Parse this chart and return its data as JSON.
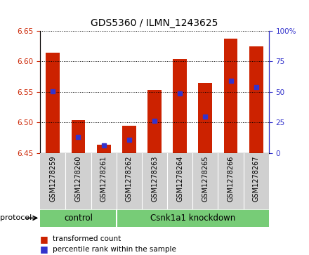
{
  "title": "GDS5360 / ILMN_1243625",
  "samples": [
    "GSM1278259",
    "GSM1278260",
    "GSM1278261",
    "GSM1278262",
    "GSM1278263",
    "GSM1278264",
    "GSM1278265",
    "GSM1278266",
    "GSM1278267"
  ],
  "bar_tops": [
    6.614,
    6.504,
    6.463,
    6.495,
    6.553,
    6.604,
    6.565,
    6.637,
    6.624
  ],
  "bar_bottom": 6.45,
  "blue_values": [
    6.551,
    6.476,
    6.462,
    6.472,
    6.503,
    6.547,
    6.51,
    6.568,
    6.558
  ],
  "ylim": [
    6.45,
    6.65
  ],
  "y_ticks": [
    6.45,
    6.5,
    6.55,
    6.6,
    6.65
  ],
  "y2_labels": [
    "0",
    "25",
    "50",
    "75",
    "100%"
  ],
  "y2_tick_positions": [
    6.45,
    6.5,
    6.55,
    6.6,
    6.65
  ],
  "bar_color": "#CC2200",
  "blue_color": "#3333CC",
  "background_plot": "#FFFFFF",
  "background_sample": "#D0D0D0",
  "green_color": "#77CC77",
  "control_count": 3,
  "legend_items": [
    "transformed count",
    "percentile rank within the sample"
  ],
  "protocol_label": "protocol",
  "group_labels": [
    "control",
    "Csnk1a1 knockdown"
  ],
  "title_fontsize": 10,
  "tick_fontsize": 7.5,
  "sample_fontsize": 7,
  "group_fontsize": 8.5,
  "legend_fontsize": 7.5
}
